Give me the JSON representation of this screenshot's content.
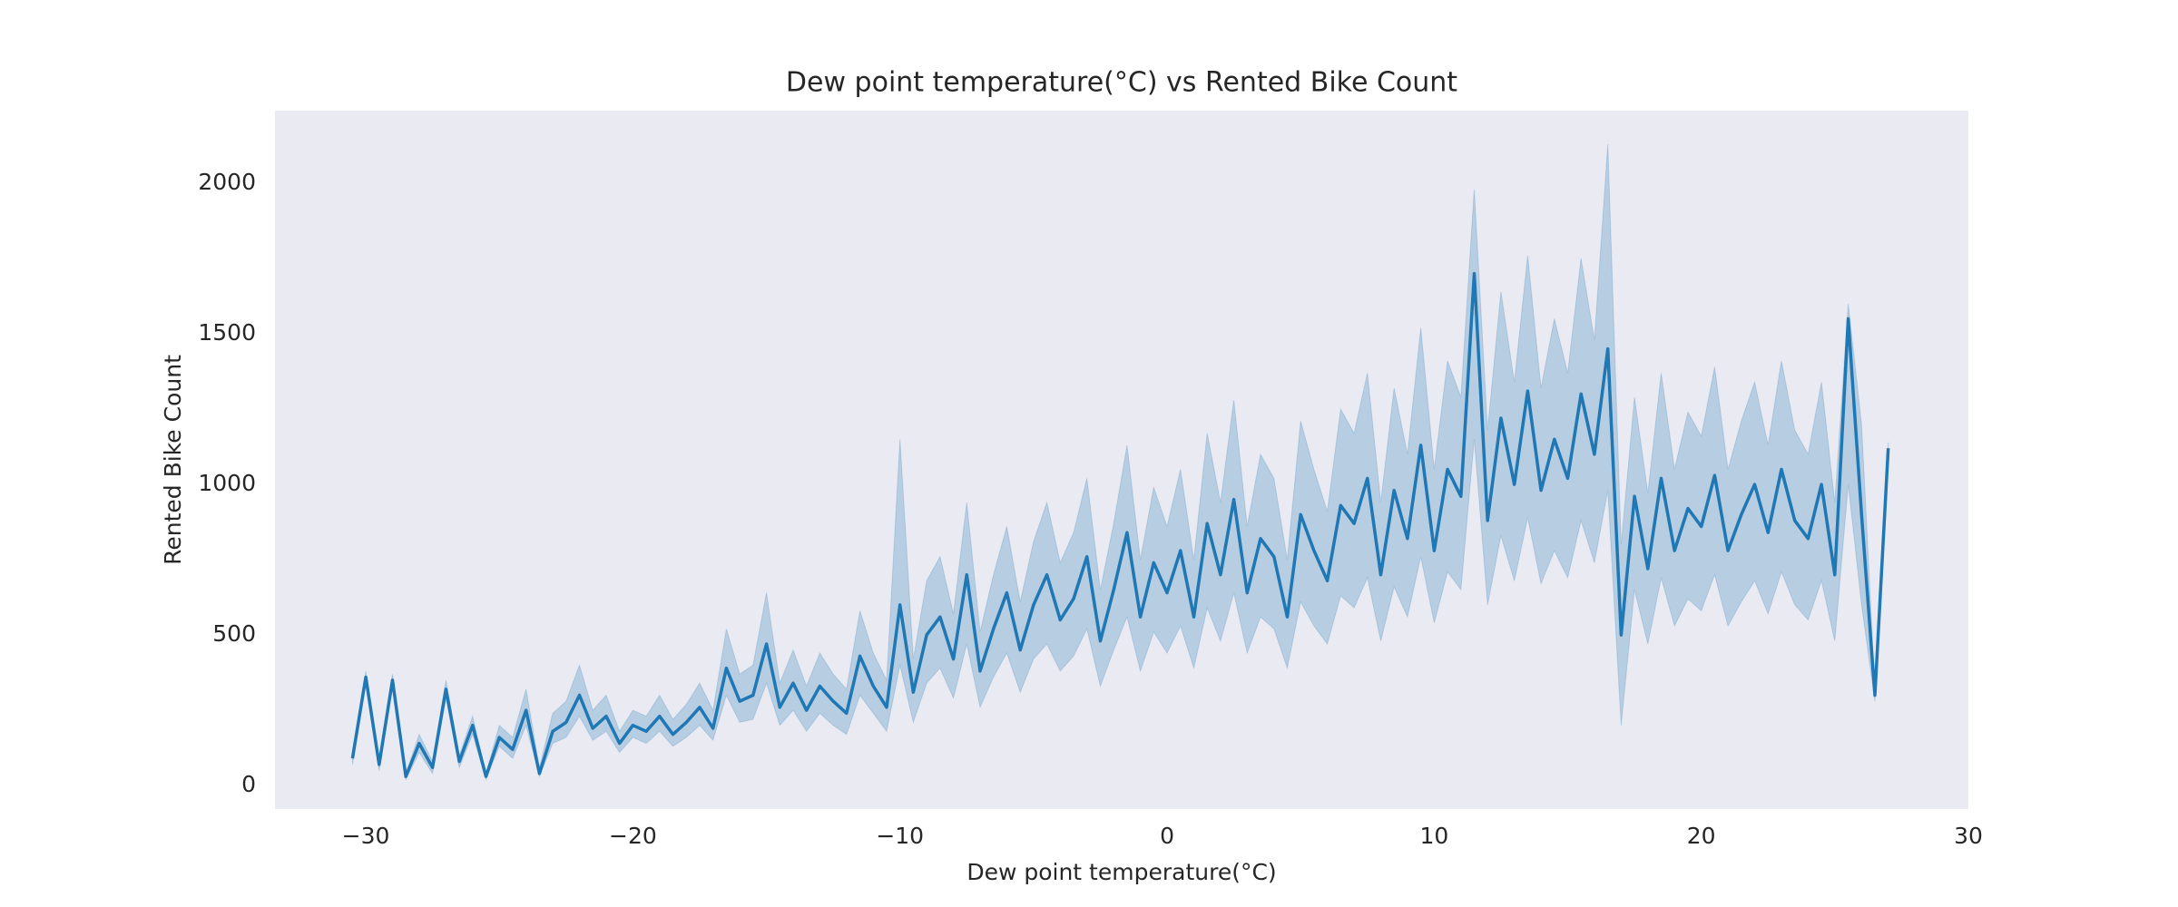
{
  "chart_data": {
    "type": "line",
    "title": "Dew point temperature(°C) vs Rented Bike Count",
    "xlabel": "Dew point temperature(°C)",
    "ylabel": "Rented Bike Count",
    "color": "#1f77b4",
    "background": "#eaeaf2",
    "grid": false,
    "x": [
      -30.5,
      -30,
      -29.5,
      -29,
      -28.5,
      -28,
      -27.5,
      -27,
      -26.5,
      -26,
      -25.5,
      -25,
      -24.5,
      -24,
      -23.5,
      -23,
      -22.5,
      -22,
      -21.5,
      -21,
      -20.5,
      -20,
      -19.5,
      -19,
      -18.5,
      -18,
      -17.5,
      -17,
      -16.5,
      -16,
      -15.5,
      -15,
      -14.5,
      -14,
      -13.5,
      -13,
      -12.5,
      -12,
      -11.5,
      -11,
      -10.5,
      -10,
      -9.5,
      -9,
      -8.5,
      -8,
      -7.5,
      -7,
      -6.5,
      -6,
      -5.5,
      -5,
      -4.5,
      -4,
      -3.5,
      -3,
      -2.5,
      -2,
      -1.5,
      -1,
      -0.5,
      0,
      0.5,
      1,
      1.5,
      2,
      2.5,
      3,
      3.5,
      4,
      4.5,
      5,
      5.5,
      6,
      6.5,
      7,
      7.5,
      8,
      8.5,
      9,
      9.5,
      10,
      10.5,
      11,
      11.5,
      12,
      12.5,
      13,
      13.5,
      14,
      14.5,
      15,
      15.5,
      16,
      16.5,
      17,
      17.5,
      18,
      18.5,
      19,
      19.5,
      20,
      20.5,
      21,
      21.5,
      22,
      22.5,
      23,
      23.5,
      24,
      24.5,
      25,
      25.5,
      26,
      26.5,
      27
    ],
    "values": [
      90,
      360,
      70,
      350,
      30,
      140,
      60,
      320,
      80,
      200,
      30,
      160,
      120,
      250,
      40,
      180,
      210,
      300,
      190,
      230,
      140,
      200,
      180,
      230,
      170,
      210,
      260,
      190,
      390,
      280,
      300,
      470,
      260,
      340,
      250,
      330,
      280,
      240,
      430,
      330,
      260,
      600,
      310,
      500,
      560,
      420,
      700,
      380,
      520,
      640,
      450,
      600,
      700,
      550,
      620,
      760,
      480,
      650,
      840,
      560,
      740,
      640,
      780,
      560,
      870,
      700,
      950,
      640,
      820,
      760,
      560,
      900,
      780,
      680,
      930,
      870,
      1020,
      700,
      980,
      820,
      1130,
      780,
      1050,
      960,
      1700,
      880,
      1220,
      1000,
      1310,
      980,
      1150,
      1020,
      1300,
      1100,
      1450,
      500,
      960,
      720,
      1020,
      780,
      920,
      860,
      1030,
      780,
      900,
      1000,
      840,
      1050,
      880,
      820,
      1000,
      700,
      1550,
      900,
      300,
      1120
    ],
    "ci_lower": [
      70,
      340,
      50,
      330,
      20,
      110,
      40,
      290,
      60,
      170,
      20,
      130,
      90,
      200,
      30,
      140,
      160,
      230,
      150,
      180,
      110,
      160,
      140,
      180,
      130,
      160,
      200,
      150,
      300,
      210,
      220,
      340,
      200,
      250,
      180,
      240,
      200,
      170,
      300,
      240,
      180,
      400,
      210,
      340,
      390,
      290,
      470,
      260,
      360,
      440,
      310,
      420,
      470,
      380,
      430,
      520,
      330,
      450,
      560,
      380,
      510,
      440,
      530,
      390,
      590,
      480,
      640,
      440,
      560,
      520,
      390,
      610,
      530,
      470,
      630,
      590,
      690,
      480,
      660,
      560,
      760,
      540,
      710,
      650,
      1150,
      600,
      830,
      680,
      890,
      670,
      780,
      690,
      880,
      740,
      980,
      200,
      650,
      470,
      690,
      530,
      620,
      580,
      700,
      530,
      610,
      680,
      570,
      710,
      600,
      550,
      680,
      480,
      1000,
      600,
      280,
      1100
    ],
    "ci_upper": [
      110,
      380,
      90,
      370,
      40,
      170,
      80,
      350,
      100,
      230,
      40,
      200,
      160,
      320,
      60,
      240,
      280,
      400,
      250,
      300,
      180,
      250,
      230,
      300,
      220,
      270,
      340,
      250,
      520,
      370,
      400,
      640,
      340,
      450,
      330,
      440,
      370,
      320,
      580,
      440,
      350,
      1150,
      420,
      680,
      760,
      570,
      940,
      510,
      700,
      860,
      610,
      810,
      940,
      740,
      840,
      1020,
      650,
      870,
      1130,
      750,
      990,
      860,
      1050,
      750,
      1170,
      940,
      1280,
      860,
      1100,
      1020,
      750,
      1210,
      1050,
      910,
      1250,
      1170,
      1370,
      940,
      1320,
      1100,
      1520,
      1050,
      1410,
      1290,
      1980,
      1180,
      1640,
      1340,
      1760,
      1320,
      1550,
      1370,
      1750,
      1480,
      2130,
      800,
      1290,
      970,
      1370,
      1050,
      1240,
      1160,
      1390,
      1050,
      1210,
      1340,
      1130,
      1410,
      1180,
      1100,
      1340,
      940,
      1600,
      1200,
      320,
      1140
    ],
    "xlim": [
      -33.4,
      30
    ],
    "ylim": [
      -78,
      2241
    ],
    "xticks": [
      {
        "value": -30,
        "label": "−30"
      },
      {
        "value": -20,
        "label": "−20"
      },
      {
        "value": -10,
        "label": "−10"
      },
      0,
      10,
      20,
      30
    ],
    "yticks": [
      0,
      500,
      1000,
      1500,
      2000
    ]
  }
}
